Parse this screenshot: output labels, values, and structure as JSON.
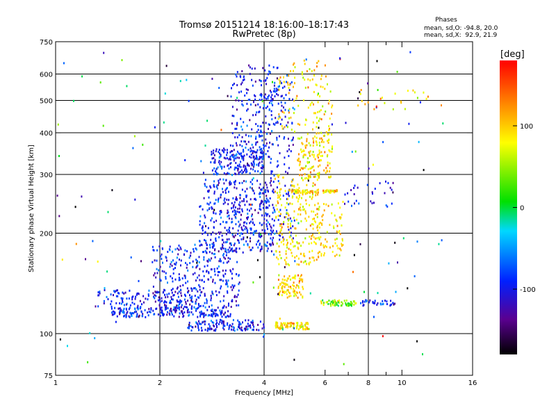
{
  "chart_data": {
    "type": "scatter",
    "title": "Tromsø 20151214 18:16:00–18:17:43",
    "subtitle": "RwPretec (8p)",
    "xlabel": "Frequency [MHz]",
    "ylabel": "Stationary phase Virtual Height [km]",
    "x_scale": "log",
    "y_scale": "log",
    "xlim": [
      1,
      16
    ],
    "ylim": [
      75,
      750
    ],
    "x_ticks": [
      {
        "value": 1,
        "label": "1"
      },
      {
        "value": 2,
        "label": "2"
      },
      {
        "value": 4,
        "label": "4"
      },
      {
        "value": 6,
        "label": "6"
      },
      {
        "value": 8,
        "label": "8"
      },
      {
        "value": 10,
        "label": "10"
      },
      {
        "value": 16,
        "label": "16"
      }
    ],
    "x_grid": [
      2,
      4,
      8
    ],
    "x_minor": [
      7,
      9
    ],
    "y_ticks": [
      {
        "value": 75,
        "label": "75"
      },
      {
        "value": 100,
        "label": "100"
      },
      {
        "value": 200,
        "label": "200"
      },
      {
        "value": 300,
        "label": "300"
      },
      {
        "value": 400,
        "label": "400"
      },
      {
        "value": 500,
        "label": "500"
      },
      {
        "value": 600,
        "label": "600"
      },
      {
        "value": 750,
        "label": "750"
      }
    ],
    "y_grid": [
      100,
      200,
      300,
      400,
      500,
      600
    ],
    "grid": true,
    "stats": {
      "heading": "Phases",
      "o_line": "mean, sd,O: -94.8, 20.0",
      "x_line": "mean, sd,X:  92.9, 21.9"
    },
    "colorbar": {
      "label": "[deg]",
      "range": [
        -180,
        180
      ],
      "ticks": [
        {
          "value": 100,
          "label": "100"
        },
        {
          "value": 0,
          "label": "0"
        },
        {
          "value": -100,
          "label": "-100"
        }
      ]
    },
    "clusters": [
      {
        "phase": -95,
        "spread": 22,
        "shape": "band",
        "x": [
          1.45,
          3.2
        ],
        "y": [
          112,
          120
        ],
        "n": 220
      },
      {
        "phase": -95,
        "spread": 22,
        "shape": "band",
        "x": [
          2.4,
          4.0
        ],
        "y": [
          102,
          110
        ],
        "n": 130
      },
      {
        "phase": -95,
        "spread": 22,
        "shape": "band",
        "x": [
          1.3,
          2.6
        ],
        "y": [
          120,
          135
        ],
        "n": 120
      },
      {
        "phase": -95,
        "spread": 22,
        "shape": "box",
        "x": [
          1.9,
          3.4
        ],
        "y": [
          120,
          185
        ],
        "n": 320
      },
      {
        "phase": -95,
        "spread": 22,
        "shape": "box",
        "x": [
          2.6,
          4.3
        ],
        "y": [
          175,
          290
        ],
        "n": 420
      },
      {
        "phase": -95,
        "spread": 22,
        "shape": "box",
        "x": [
          2.8,
          4.0
        ],
        "y": [
          300,
          360
        ],
        "n": 200
      },
      {
        "phase": -95,
        "spread": 22,
        "shape": "box",
        "x": [
          3.2,
          4.4
        ],
        "y": [
          360,
          640
        ],
        "n": 170
      },
      {
        "phase": -95,
        "spread": 22,
        "shape": "box",
        "x": [
          3.9,
          4.9
        ],
        "y": [
          180,
          600
        ],
        "n": 180
      },
      {
        "phase": 93,
        "spread": 22,
        "shape": "box",
        "x": [
          4.3,
          5.8
        ],
        "y": [
          160,
          300
        ],
        "n": 240
      },
      {
        "phase": 93,
        "spread": 22,
        "shape": "box",
        "x": [
          4.4,
          5.2
        ],
        "y": [
          128,
          150
        ],
        "n": 90
      },
      {
        "phase": 93,
        "spread": 22,
        "shape": "band",
        "x": [
          4.3,
          5.4
        ],
        "y": [
          103,
          108
        ],
        "n": 90
      },
      {
        "phase": 93,
        "spread": 22,
        "shape": "box",
        "x": [
          5.0,
          6.3
        ],
        "y": [
          290,
          400
        ],
        "n": 140
      },
      {
        "phase": 93,
        "spread": 22,
        "shape": "box",
        "x": [
          4.4,
          6.3
        ],
        "y": [
          400,
          660
        ],
        "n": 110
      },
      {
        "phase": 93,
        "spread": 22,
        "shape": "band",
        "x": [
          4.8,
          6.5
        ],
        "y": [
          264,
          270
        ],
        "n": 70
      },
      {
        "phase": 40,
        "spread": 30,
        "shape": "band",
        "x": [
          5.8,
          7.4
        ],
        "y": [
          121,
          126
        ],
        "n": 60
      },
      {
        "phase": -90,
        "spread": 25,
        "shape": "band",
        "x": [
          7.6,
          9.6
        ],
        "y": [
          121,
          126
        ],
        "n": 35
      },
      {
        "phase": 93,
        "spread": 20,
        "shape": "box",
        "x": [
          5.6,
          6.8
        ],
        "y": [
          170,
          250
        ],
        "n": 70
      },
      {
        "phase": -60,
        "spread": 90,
        "shape": "box",
        "x": [
          1.0,
          13.5
        ],
        "y": [
          76,
          700
        ],
        "n": 140
      },
      {
        "phase": -95,
        "spread": 25,
        "shape": "box",
        "x": [
          6.8,
          9.6
        ],
        "y": [
          240,
          290
        ],
        "n": 30
      },
      {
        "phase": 90,
        "spread": 30,
        "shape": "box",
        "x": [
          7.4,
          13.0
        ],
        "y": [
          470,
          540
        ],
        "n": 25
      }
    ]
  }
}
